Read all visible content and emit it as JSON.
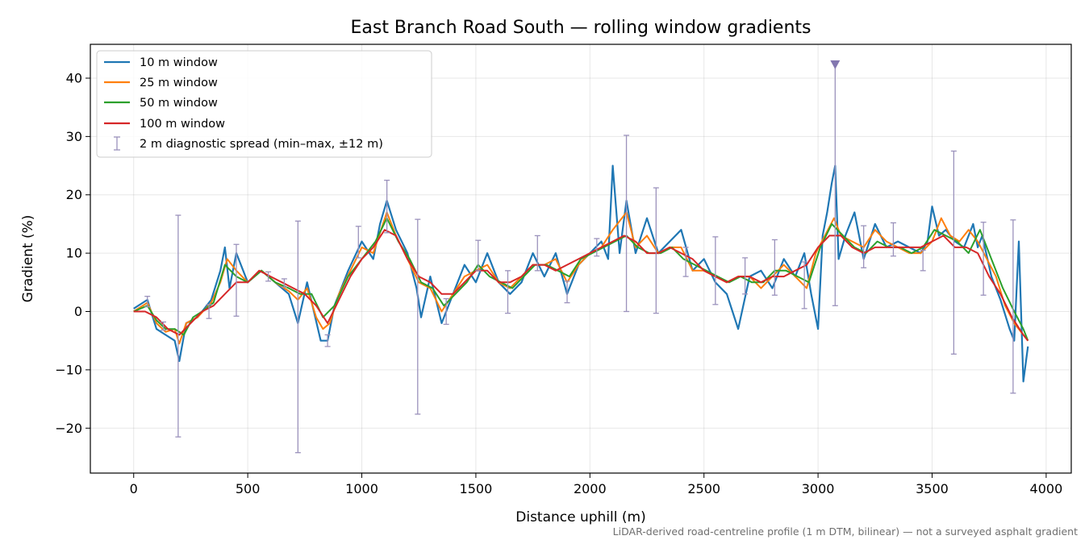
{
  "chart_data": {
    "type": "line",
    "title": "East Branch Road South — rolling window gradients",
    "xlabel": "Distance uphill (m)",
    "ylabel": "Gradient (%)",
    "xlim": [
      -190,
      4110
    ],
    "ylim": [
      -27.7,
      45.8
    ],
    "xticks": [
      0,
      500,
      1000,
      1500,
      2000,
      2500,
      3000,
      3500,
      4000
    ],
    "yticks": [
      -20,
      -10,
      0,
      10,
      20,
      30,
      40
    ],
    "xtick_labels": [
      "0",
      "500",
      "1000",
      "1500",
      "2000",
      "2500",
      "3000",
      "3500",
      "4000"
    ],
    "ytick_labels": [
      "−20",
      "−10",
      "0",
      "10",
      "20",
      "30",
      "40"
    ],
    "grid": true,
    "legend_position": "top-left",
    "footnote": "LiDAR-derived road-centreline profile (1 m DTM, bilinear) — not a surveyed asphalt gradient",
    "series": [
      {
        "name": "10 m window",
        "color": "#1f77b4",
        "x": [
          0,
          60,
          100,
          140,
          180,
          200,
          230,
          280,
          340,
          380,
          400,
          420,
          450,
          500,
          560,
          620,
          680,
          720,
          760,
          790,
          820,
          850,
          880,
          940,
          1000,
          1050,
          1080,
          1110,
          1150,
          1200,
          1240,
          1260,
          1300,
          1350,
          1400,
          1450,
          1500,
          1550,
          1600,
          1650,
          1700,
          1750,
          1800,
          1850,
          1900,
          1950,
          2000,
          2050,
          2080,
          2100,
          2130,
          2160,
          2200,
          2250,
          2300,
          2350,
          2400,
          2450,
          2500,
          2550,
          2600,
          2650,
          2700,
          2750,
          2800,
          2850,
          2900,
          2940,
          2970,
          3000,
          3020,
          3040,
          3060,
          3075,
          3090,
          3120,
          3160,
          3200,
          3250,
          3300,
          3350,
          3400,
          3450,
          3480,
          3500,
          3530,
          3560,
          3600,
          3640,
          3680,
          3700,
          3720,
          3760,
          3800,
          3840,
          3860,
          3880,
          3900,
          3920
        ],
        "y": [
          0.5,
          2,
          -3,
          -4,
          -5,
          -8.5,
          -2,
          -1,
          2,
          7,
          11,
          4,
          10,
          5,
          7,
          5,
          3,
          -2,
          5,
          0,
          -5,
          -5,
          1,
          7,
          12,
          9,
          15,
          19,
          14,
          10,
          4,
          -1,
          6,
          -2,
          3,
          8,
          5,
          10,
          5,
          3,
          5,
          10,
          6,
          10,
          3,
          8,
          10,
          12,
          9,
          25,
          10,
          19,
          10,
          16,
          10,
          12,
          14,
          7,
          9,
          5,
          3,
          -3,
          6,
          7,
          4,
          9,
          6,
          10,
          3,
          -3,
          13,
          17,
          22,
          25,
          9,
          13,
          17,
          9,
          15,
          11,
          12,
          11,
          10,
          12,
          18,
          13,
          14,
          12,
          11,
          15,
          11,
          13,
          6,
          2,
          -3,
          -5,
          12,
          -12,
          -6
        ]
      },
      {
        "name": "25 m window",
        "color": "#ff7f0e",
        "x": [
          0,
          60,
          100,
          140,
          180,
          200,
          230,
          280,
          340,
          380,
          410,
          450,
          500,
          560,
          620,
          680,
          720,
          760,
          800,
          830,
          860,
          900,
          950,
          1000,
          1050,
          1110,
          1150,
          1200,
          1250,
          1300,
          1350,
          1400,
          1450,
          1500,
          1550,
          1600,
          1650,
          1700,
          1750,
          1800,
          1850,
          1900,
          1950,
          2000,
          2050,
          2100,
          2160,
          2200,
          2250,
          2300,
          2350,
          2400,
          2450,
          2500,
          2550,
          2600,
          2650,
          2700,
          2750,
          2800,
          2850,
          2900,
          2950,
          2990,
          3030,
          3070,
          3100,
          3150,
          3200,
          3250,
          3300,
          3350,
          3400,
          3450,
          3500,
          3540,
          3580,
          3620,
          3660,
          3700,
          3740,
          3780,
          3820,
          3860,
          3900,
          3920
        ],
        "y": [
          0,
          1.5,
          -2,
          -3.5,
          -3,
          -5.5,
          -2,
          -1,
          1.5,
          5,
          9,
          7,
          5,
          7,
          5,
          3.5,
          2,
          4,
          -1,
          -3,
          -2,
          3,
          7,
          11,
          10,
          17,
          13,
          9,
          5,
          4,
          0,
          3,
          6,
          7,
          8,
          5,
          4,
          6,
          8,
          8,
          9,
          5,
          8,
          10,
          11,
          14,
          17,
          11,
          13,
          10,
          11,
          11,
          7,
          7,
          6,
          5,
          6,
          6,
          4,
          6,
          8,
          6,
          4,
          10,
          13,
          16,
          13,
          12,
          11,
          14,
          12,
          11,
          10,
          10,
          12,
          16,
          13,
          12,
          14,
          12,
          9,
          6,
          1,
          -2,
          -4,
          -5
        ]
      },
      {
        "name": "50 m window",
        "color": "#2ca02c",
        "x": [
          0,
          60,
          100,
          140,
          180,
          220,
          260,
          300,
          350,
          400,
          450,
          500,
          560,
          620,
          680,
          730,
          780,
          830,
          880,
          940,
          1000,
          1060,
          1110,
          1160,
          1210,
          1260,
          1310,
          1360,
          1410,
          1460,
          1510,
          1560,
          1610,
          1660,
          1710,
          1760,
          1810,
          1860,
          1910,
          1960,
          2010,
          2060,
          2110,
          2160,
          2210,
          2260,
          2310,
          2360,
          2410,
          2460,
          2510,
          2560,
          2610,
          2660,
          2710,
          2760,
          2810,
          2860,
          2910,
          2960,
          3010,
          3060,
          3110,
          3160,
          3210,
          3260,
          3310,
          3360,
          3410,
          3460,
          3510,
          3560,
          3610,
          3660,
          3710,
          3760,
          3810,
          3860,
          3900,
          3920
        ],
        "y": [
          0,
          1,
          -1.5,
          -3,
          -3,
          -4,
          -1,
          0,
          1.5,
          8,
          6,
          5,
          7,
          5,
          4,
          3,
          3,
          -1,
          1,
          6,
          9,
          12,
          16,
          12,
          9,
          5,
          4,
          1,
          3,
          5,
          8,
          6,
          5,
          4,
          6,
          8,
          8,
          7,
          6,
          9,
          10,
          11,
          12,
          13,
          11,
          10,
          10,
          11,
          9,
          8,
          7,
          6,
          5,
          6,
          5,
          5,
          7,
          7,
          6,
          5,
          11,
          15,
          13,
          11,
          10,
          12,
          11,
          11,
          10,
          11,
          14,
          13,
          12,
          10,
          14,
          9,
          4,
          0,
          -3,
          -5
        ]
      },
      {
        "name": "100 m window",
        "color": "#d62728",
        "x": [
          0,
          50,
          100,
          150,
          200,
          250,
          300,
          350,
          400,
          450,
          500,
          550,
          600,
          650,
          700,
          750,
          800,
          850,
          900,
          950,
          1000,
          1050,
          1100,
          1150,
          1200,
          1250,
          1300,
          1350,
          1400,
          1450,
          1500,
          1550,
          1600,
          1650,
          1700,
          1750,
          1800,
          1850,
          1900,
          1950,
          2000,
          2050,
          2100,
          2150,
          2200,
          2250,
          2300,
          2350,
          2400,
          2450,
          2500,
          2550,
          2600,
          2650,
          2700,
          2750,
          2800,
          2850,
          2900,
          2950,
          3000,
          3050,
          3100,
          3150,
          3200,
          3250,
          3300,
          3350,
          3400,
          3450,
          3500,
          3550,
          3600,
          3650,
          3700,
          3750,
          3800,
          3850,
          3900,
          3920
        ],
        "y": [
          0,
          0,
          -1,
          -3,
          -4,
          -2,
          0,
          1,
          3,
          5,
          5,
          7,
          6,
          5,
          4,
          3,
          1,
          -2,
          2,
          6,
          9,
          11,
          14,
          13,
          9,
          6,
          5,
          3,
          3,
          5,
          7,
          7,
          5,
          5,
          6,
          8,
          8,
          7,
          8,
          9,
          10,
          11,
          12,
          13,
          12,
          10,
          10,
          11,
          10,
          9,
          7,
          6,
          5,
          6,
          6,
          5,
          6,
          6,
          7,
          8,
          11,
          13,
          13,
          11,
          10,
          11,
          11,
          11,
          11,
          11,
          12,
          13,
          11,
          11,
          10,
          6,
          3,
          -1,
          -4,
          -5
        ]
      }
    ],
    "diagnostic_spread": {
      "name": "2 m diagnostic spread (min–max, ±12 m)",
      "color": "#9b92bc",
      "items": [
        {
          "x": 60,
          "low": 0.8,
          "high": 2.6
        },
        {
          "x": 130,
          "low": -3.2,
          "high": -1.8
        },
        {
          "x": 195,
          "low": -21.5,
          "high": 16.5
        },
        {
          "x": 330,
          "low": -1.2,
          "high": 1.2
        },
        {
          "x": 450,
          "low": -0.8,
          "high": 11.5
        },
        {
          "x": 590,
          "low": 5.2,
          "high": 6.8
        },
        {
          "x": 660,
          "low": 4.2,
          "high": 5.6
        },
        {
          "x": 720,
          "low": -24.2,
          "high": 15.5
        },
        {
          "x": 850,
          "low": -6,
          "high": -4
        },
        {
          "x": 985,
          "low": 9.2,
          "high": 14.6
        },
        {
          "x": 1110,
          "low": 13.5,
          "high": 22.5
        },
        {
          "x": 1245,
          "low": -17.6,
          "high": 15.8
        },
        {
          "x": 1370,
          "low": -2.2,
          "high": 2.2
        },
        {
          "x": 1510,
          "low": 7,
          "high": 12.2
        },
        {
          "x": 1640,
          "low": -0.3,
          "high": 7
        },
        {
          "x": 1770,
          "low": 7,
          "high": 13
        },
        {
          "x": 1900,
          "low": 1.5,
          "high": 5.2
        },
        {
          "x": 2030,
          "low": 9.5,
          "high": 12.5
        },
        {
          "x": 2160,
          "low": 0,
          "high": 30.2
        },
        {
          "x": 2290,
          "low": -0.3,
          "high": 21.2
        },
        {
          "x": 2420,
          "low": 6,
          "high": 11
        },
        {
          "x": 2550,
          "low": 1.2,
          "high": 12.8
        },
        {
          "x": 2680,
          "low": 3,
          "high": 9.2
        },
        {
          "x": 2810,
          "low": 2.8,
          "high": 12.3
        },
        {
          "x": 2940,
          "low": 0.5,
          "high": 8.5
        },
        {
          "x": 3075,
          "low": 1,
          "high": 42.5,
          "capped": true
        },
        {
          "x": 3200,
          "low": 7.5,
          "high": 14.7
        },
        {
          "x": 3330,
          "low": 9.5,
          "high": 15.2
        },
        {
          "x": 3460,
          "low": 7,
          "high": 10.5
        },
        {
          "x": 3595,
          "low": -7.3,
          "high": 27.5
        },
        {
          "x": 3725,
          "low": 2.8,
          "high": 15.3
        },
        {
          "x": 3855,
          "low": -14,
          "high": 15.7
        }
      ]
    }
  }
}
